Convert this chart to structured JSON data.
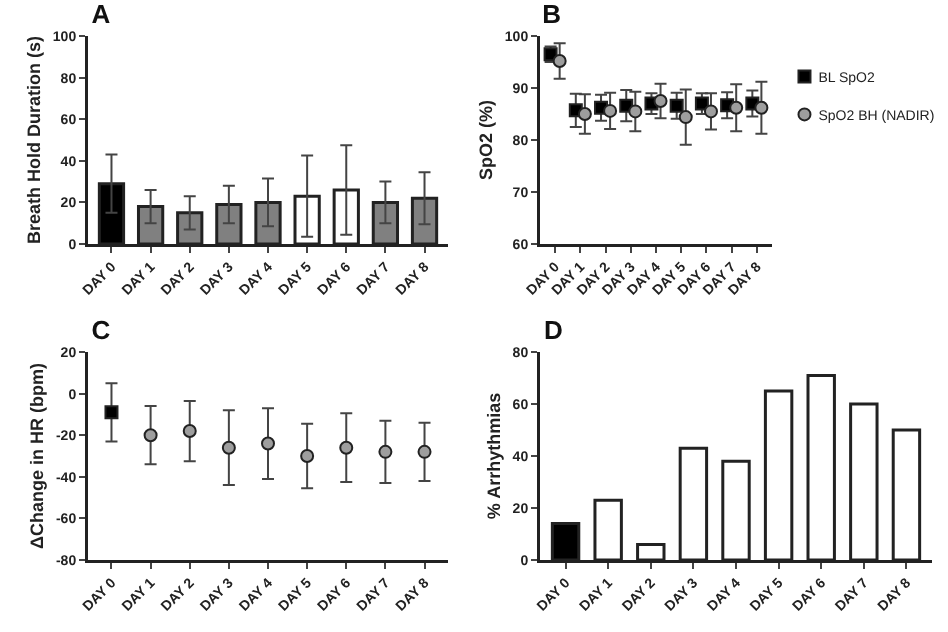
{
  "chart_data": [
    {
      "type": "bar",
      "title": "A",
      "ylabel": "Breath Hold Duration (s)",
      "categories": [
        "DAY 0",
        "DAY 1",
        "DAY 2",
        "DAY 3",
        "DAY 4",
        "DAY 5",
        "DAY 6",
        "DAY 7",
        "DAY 8"
      ],
      "values": [
        29,
        18,
        15,
        19,
        20,
        23,
        26,
        20,
        22
      ],
      "errors": [
        14,
        8,
        8,
        9,
        11.5,
        19.5,
        21.5,
        10,
        12.5
      ],
      "colors": [
        "#000000",
        "#808080",
        "#808080",
        "#808080",
        "#808080",
        "#ffffff",
        "#ffffff",
        "#808080",
        "#808080"
      ],
      "ylim": [
        0,
        100
      ],
      "yticks": [
        0,
        20,
        40,
        60,
        80,
        100
      ],
      "grid": false,
      "legend": false
    },
    {
      "type": "scatter",
      "title": "B",
      "ylabel": "SpO2 (%)",
      "categories": [
        "DAY 0",
        "DAY 1",
        "DAY 2",
        "DAY 3",
        "DAY 4",
        "DAY 5",
        "DAY 6",
        "DAY 7",
        "DAY 8"
      ],
      "series": [
        {
          "name": "BL SpO2",
          "color": "#000000",
          "marker": "square",
          "values": [
            96.5,
            85.7,
            86.2,
            86.6,
            87,
            86.6,
            87,
            86.7,
            87
          ],
          "errors": [
            1.5,
            3.2,
            2.5,
            3,
            2,
            2.5,
            2,
            2.5,
            2.5
          ]
        },
        {
          "name": "SpO2 BH (NADIR)",
          "color": "#9e9e9e",
          "marker": "circle",
          "values": [
            95.2,
            85,
            85.6,
            85.5,
            87.5,
            84.4,
            85.5,
            86.2,
            86.2
          ],
          "errors": [
            3.4,
            3.8,
            3.5,
            3.8,
            3.3,
            5.3,
            3.5,
            4.5,
            5
          ]
        }
      ],
      "ylim": [
        60,
        100
      ],
      "yticks": [
        60,
        70,
        80,
        90,
        100
      ],
      "grid": false,
      "legend": "right"
    },
    {
      "type": "scatter",
      "title": "C",
      "ylabel": "ΔChange in HR (bpm)",
      "categories": [
        "DAY 0",
        "DAY 1",
        "DAY 2",
        "DAY 3",
        "DAY 4",
        "DAY 5",
        "DAY 6",
        "DAY 7",
        "DAY 8"
      ],
      "series": [
        {
          "color": "#000000",
          "marker": "square",
          "values": [
            -9,
            null,
            null,
            null,
            null,
            null,
            null,
            null,
            null
          ],
          "errors": [
            14,
            null,
            null,
            null,
            null,
            null,
            null,
            null,
            null
          ]
        },
        {
          "color": "#9e9e9e",
          "marker": "circle",
          "values": [
            null,
            -20,
            -18,
            -26,
            -24,
            -30,
            -26,
            -28,
            -28
          ],
          "errors": [
            null,
            14,
            14.5,
            18,
            17,
            15.5,
            16.5,
            15,
            14
          ]
        }
      ],
      "ylim": [
        -80,
        20
      ],
      "yticks": [
        -80,
        -60,
        -40,
        -20,
        0,
        20
      ],
      "grid": false,
      "legend": false
    },
    {
      "type": "bar",
      "title": "D",
      "ylabel": "% Arrhythmias",
      "categories": [
        "DAY 0",
        "DAY 1",
        "DAY 2",
        "DAY 3",
        "DAY 4",
        "DAY 5",
        "DAY 6",
        "DAY 7",
        "DAY 8"
      ],
      "values": [
        14,
        23,
        6,
        43,
        38,
        65,
        71,
        60,
        50
      ],
      "colors": [
        "#000000",
        "#ffffff",
        "#ffffff",
        "#ffffff",
        "#ffffff",
        "#ffffff",
        "#ffffff",
        "#ffffff",
        "#ffffff"
      ],
      "ylim": [
        0,
        80
      ],
      "yticks": [
        0,
        20,
        40,
        60,
        80
      ],
      "grid": false,
      "legend": false
    }
  ]
}
